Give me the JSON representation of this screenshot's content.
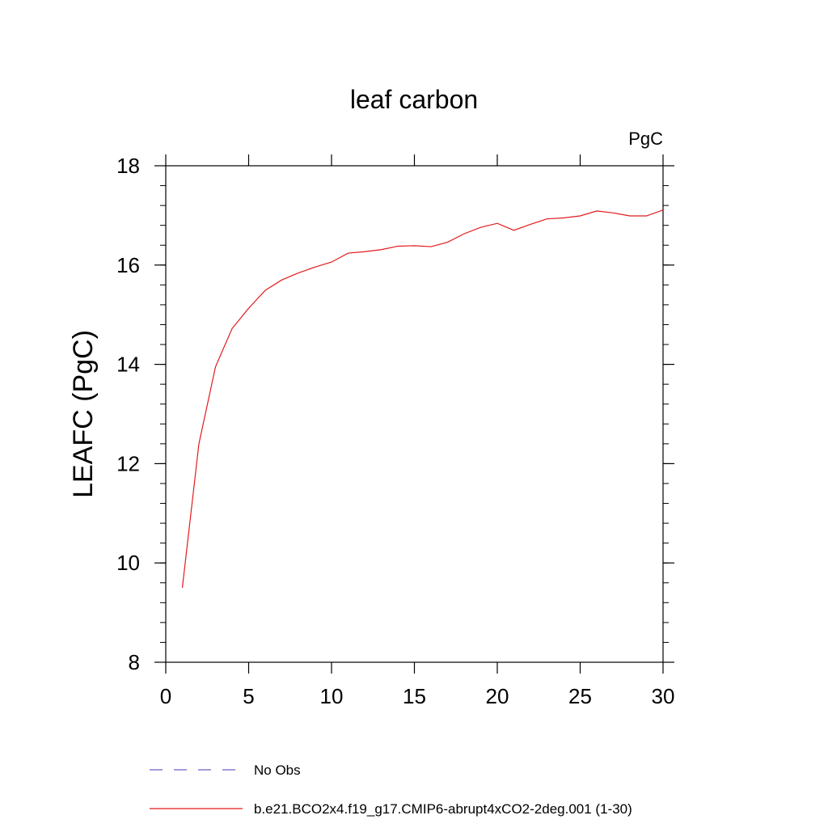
{
  "chart_data": {
    "type": "line",
    "title": "leaf carbon",
    "units_label": "PgC",
    "ylabel": "LEAFC  (PgC)",
    "xlabel": "",
    "xlim": [
      0,
      30
    ],
    "ylim": [
      8,
      18
    ],
    "x_ticks": [
      0,
      5,
      10,
      15,
      20,
      25,
      30
    ],
    "y_ticks": [
      8,
      10,
      12,
      14,
      16,
      18
    ],
    "grid": false,
    "legend_position": "bottom",
    "legend": [
      {
        "label": "No Obs",
        "color": "#6b5fc4",
        "style": "dashed"
      },
      {
        "label": "b.e21.BCO2x4.f19_g17.CMIP6-abrupt4xCO2-2deg.001 (1-30)",
        "color": "#e31a1c",
        "style": "solid"
      }
    ],
    "series": [
      {
        "name": "b.e21.BCO2x4.f19_g17.CMIP6-abrupt4xCO2-2deg.001 (1-30)",
        "color": "#e31a1c",
        "x": [
          1,
          2,
          3,
          4,
          5,
          6,
          7,
          8,
          9,
          10,
          11,
          12,
          13,
          14,
          15,
          16,
          17,
          18,
          19,
          20,
          21,
          22,
          23,
          24,
          25,
          26,
          27,
          28,
          29,
          30
        ],
        "values": [
          9.5,
          12.4,
          13.95,
          14.72,
          15.13,
          15.49,
          15.7,
          15.84,
          15.96,
          16.06,
          16.24,
          16.27,
          16.31,
          16.38,
          16.39,
          16.37,
          16.46,
          16.63,
          16.76,
          16.84,
          16.7,
          16.82,
          16.93,
          16.95,
          16.99,
          17.09,
          17.05,
          16.99,
          16.99,
          17.11
        ]
      }
    ]
  }
}
